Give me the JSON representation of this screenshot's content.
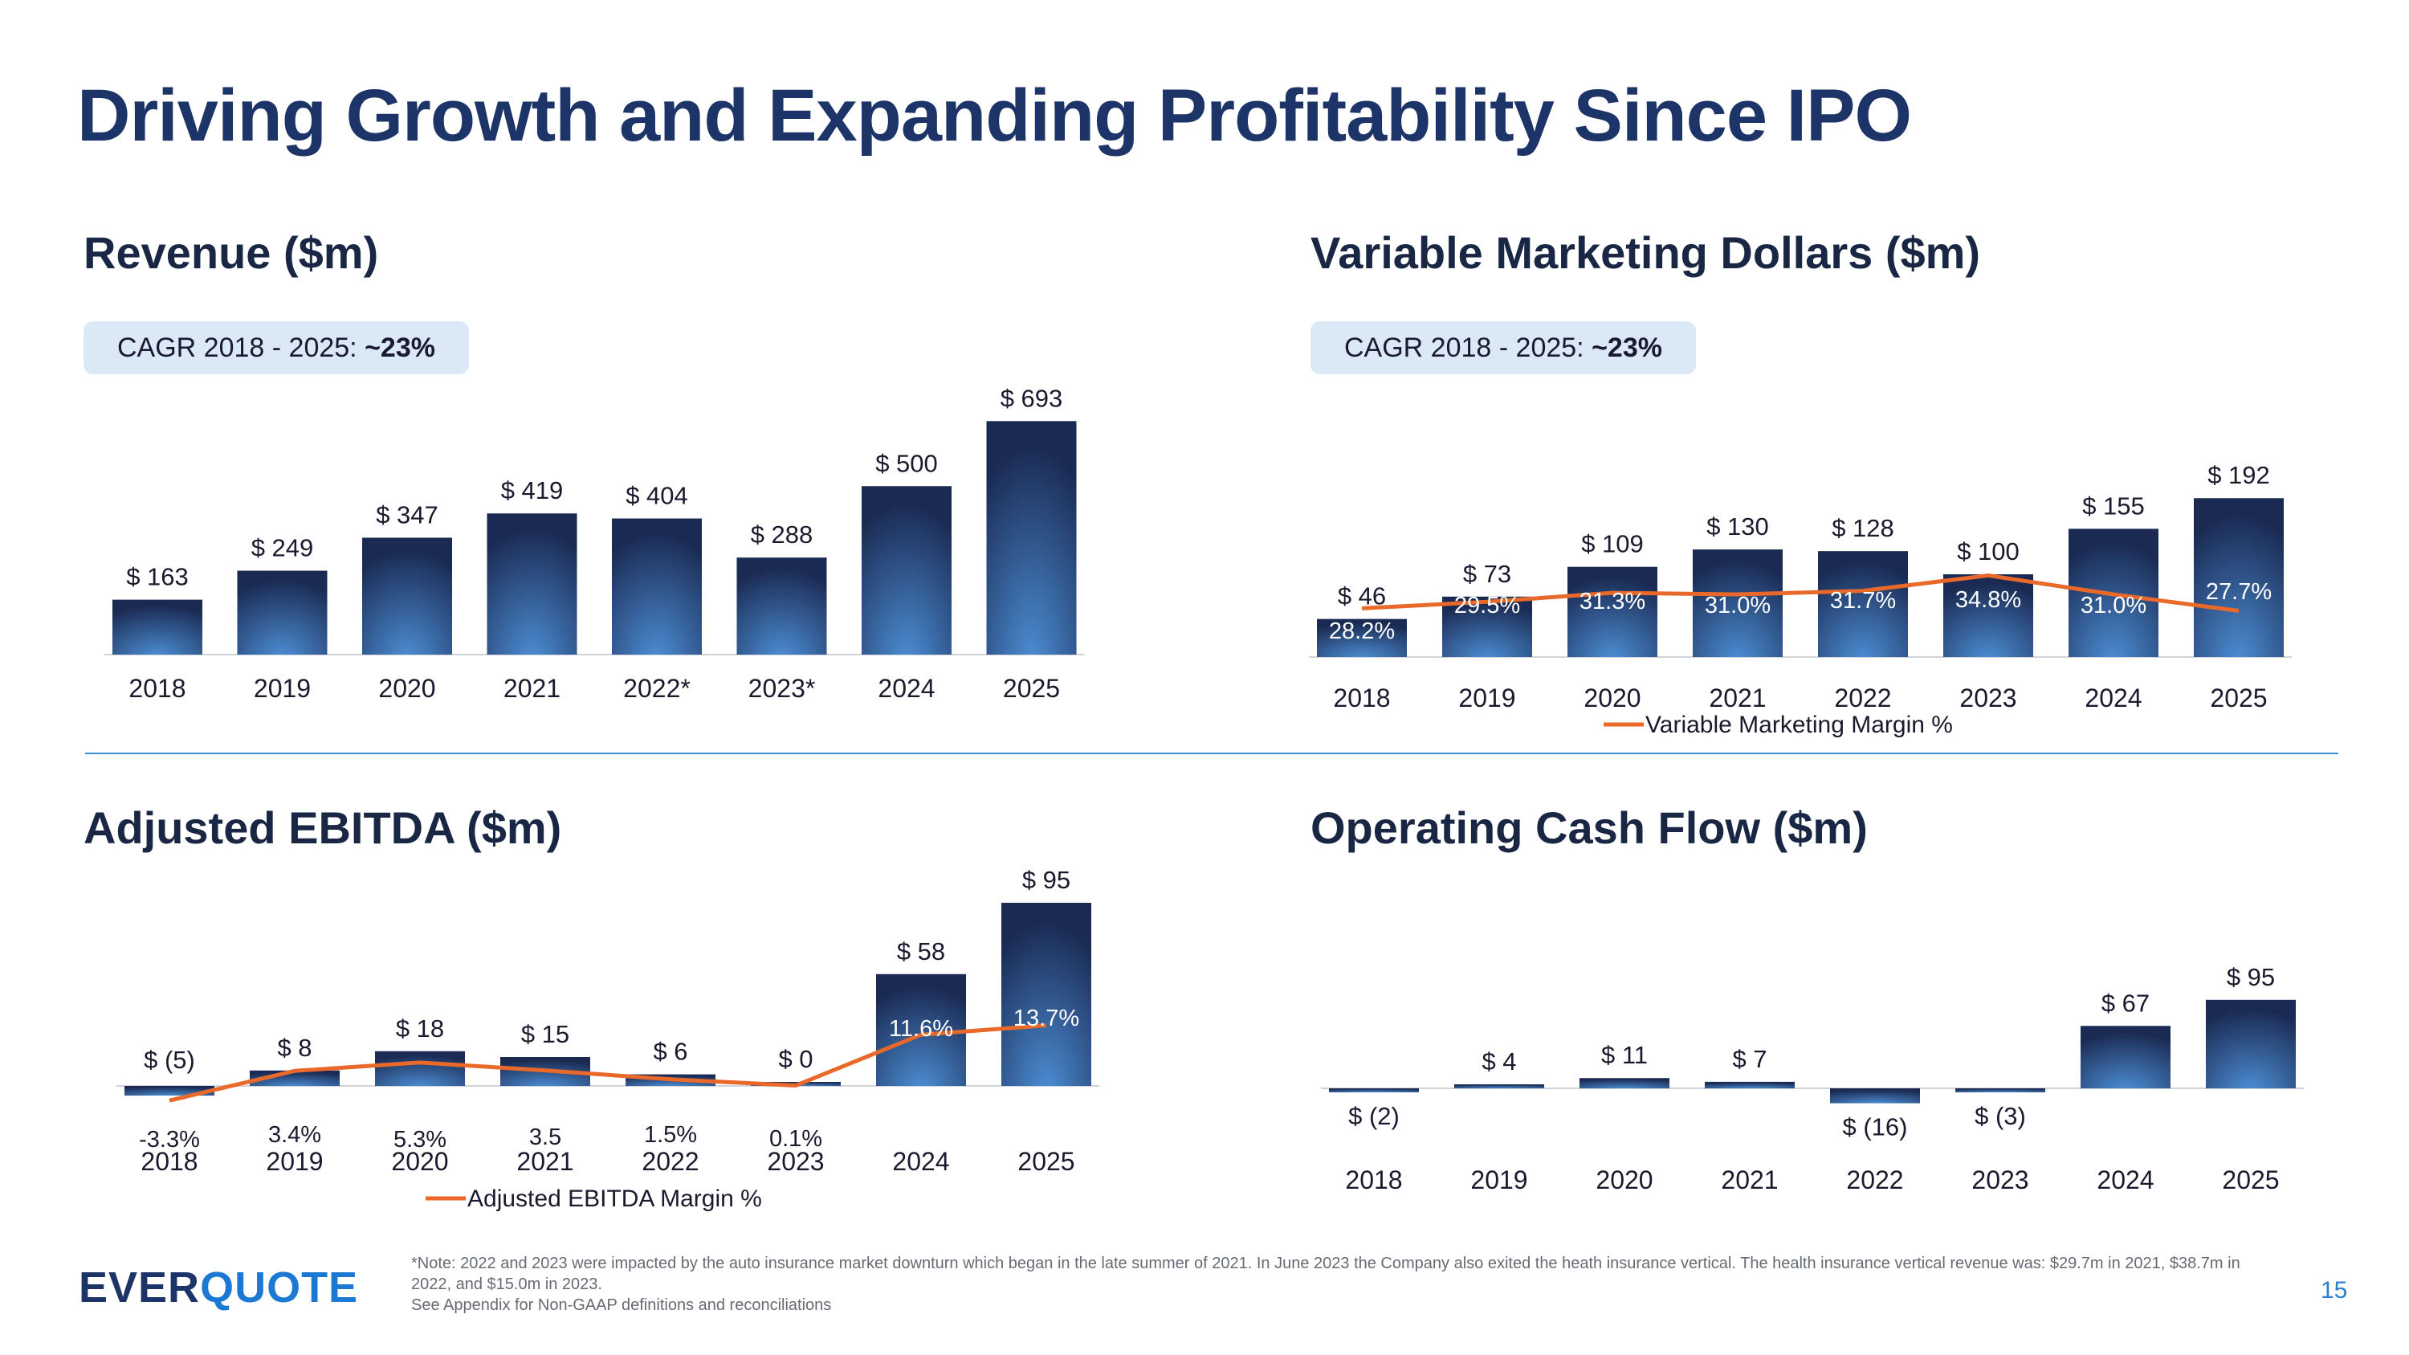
{
  "title": "Driving Growth and Expanding Profitability Since IPO",
  "page_number": "15",
  "logo": {
    "part1": "EVER",
    "part2": "QUOTE"
  },
  "footnote": {
    "line1": "*Note: 2022 and 2023 were impacted by the auto insurance market downturn which began in the late summer of 2021. In June 2023 the Company also exited the heath insurance vertical.   The health insurance vertical revenue was: $29.7m in 2021, $38.7m in 2022, and $15.0m in 2023.",
    "line2": "See Appendix for Non-GAAP definitions and reconciliations"
  },
  "colors": {
    "title": "#1d3468",
    "bar_top": "#1a2a52",
    "bar_bottom": "#4d8fd6",
    "margin_line": "#e8692a",
    "divider": "#3a8fd8",
    "cagr_bg": "#dbe9f7"
  },
  "revenue": {
    "title": "Revenue ($m)",
    "cagr_prefix": "CAGR 2018 - 2025: ",
    "cagr_value": "~23%"
  },
  "vmd": {
    "title": "Variable Marketing Dollars ($m)",
    "cagr_prefix": "CAGR 2018 - 2025: ",
    "cagr_value": "~23%"
  },
  "ebitda": {
    "title": "Adjusted EBITDA ($m)"
  },
  "ocf": {
    "title": "Operating Cash Flow ($m)"
  },
  "chart_data": [
    {
      "id": "revenue",
      "type": "bar",
      "categories": [
        "2018",
        "2019",
        "2020",
        "2021",
        "2022*",
        "2023*",
        "2024",
        "2025"
      ],
      "values": [
        163,
        249,
        347,
        419,
        404,
        288,
        500,
        693
      ],
      "labels": [
        "$ 163",
        "$ 249",
        "$ 347",
        "$ 419",
        "$ 404",
        "$ 288",
        "$ 500",
        "$ 693"
      ],
      "ylim": [
        0,
        693
      ]
    },
    {
      "id": "vmd",
      "type": "bar",
      "categories": [
        "2018",
        "2019",
        "2020",
        "2021",
        "2022",
        "2023",
        "2024",
        "2025"
      ],
      "values": [
        46,
        73,
        109,
        130,
        128,
        100,
        155,
        192
      ],
      "labels": [
        "$ 46",
        "$ 73",
        "$ 109",
        "$ 130",
        "$ 128",
        "$ 100",
        "$ 155",
        "$ 192"
      ],
      "line_series": {
        "name": "Variable Marketing Margin %",
        "values": [
          28.2,
          29.5,
          31.3,
          31.0,
          31.7,
          34.8,
          31.0,
          27.7
        ],
        "labels": [
          "28.2%",
          "29.5%",
          "31.3%",
          "31.0%",
          "31.7%",
          "34.8%",
          "31.0%",
          "27.7%"
        ]
      },
      "legend": "bottom",
      "ylim": [
        0,
        192
      ]
    },
    {
      "id": "ebitda",
      "type": "bar",
      "categories": [
        "2018",
        "2019",
        "2020",
        "2021",
        "2022",
        "2023",
        "2024",
        "2025"
      ],
      "values": [
        -5,
        8,
        18,
        15,
        6,
        0,
        58,
        95
      ],
      "labels": [
        "$ (5)",
        "$ 8",
        "$ 18",
        "$ 15",
        "$ 6",
        "$ 0",
        "$ 58",
        "$ 95"
      ],
      "line_series": {
        "name": "Adjusted EBITDA Margin %",
        "values": [
          -3.3,
          3.4,
          5.3,
          3.5,
          1.5,
          0.1,
          11.6,
          13.7
        ],
        "labels": [
          "-3.3%",
          "3.4%",
          "5.3%",
          "3.5",
          "1.5%",
          "0.1%",
          "11.6%",
          "13.7%"
        ]
      },
      "legend": "bottom",
      "ylim": [
        -5,
        95
      ]
    },
    {
      "id": "ocf",
      "type": "bar",
      "categories": [
        "2018",
        "2019",
        "2020",
        "2021",
        "2022",
        "2023",
        "2024",
        "2025"
      ],
      "values": [
        -2,
        4,
        11,
        7,
        -16,
        -3,
        67,
        95
      ],
      "labels": [
        "$ (2)",
        "$ 4",
        "$ 11",
        "$ 7",
        "$ (16)",
        "$ (3)",
        "$ 67",
        "$ 95"
      ],
      "ylim": [
        -16,
        95
      ]
    }
  ]
}
